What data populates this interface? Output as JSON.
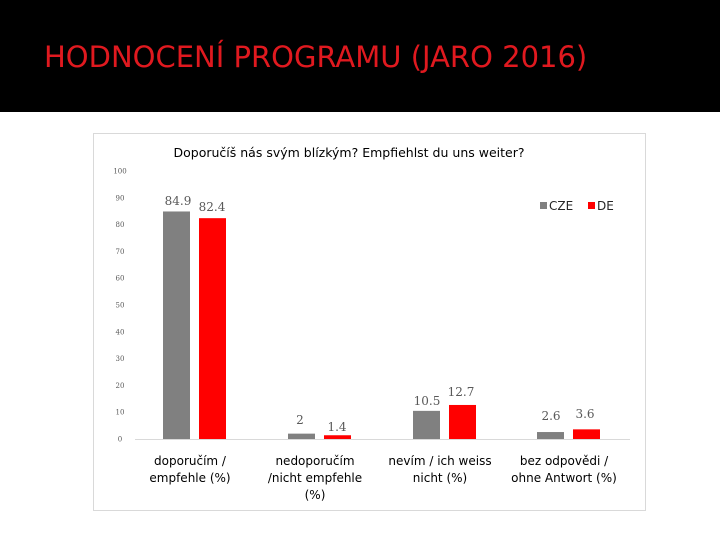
{
  "slide": {
    "title": "HODNOCENÍ PROGRAMU (JARO 2016)"
  },
  "chart_data": {
    "type": "bar",
    "title": "Doporučíš nás svým blízkým? Empfiehlst du uns weiter?",
    "categories": [
      [
        "doporučím /",
        "empfehle (%)"
      ],
      [
        "nedoporučím",
        "/nicht empfehle",
        "(%)"
      ],
      [
        "nevím / ich weiss",
        "nicht (%)"
      ],
      [
        "bez odpovědi /",
        "ohne Antwort (%)"
      ]
    ],
    "series": [
      {
        "name": "CZE",
        "color": "#808080",
        "values": [
          84.9,
          2,
          10.5,
          2.6
        ]
      },
      {
        "name": "DE",
        "color": "#ff0000",
        "values": [
          82.4,
          1.4,
          12.7,
          3.6
        ]
      }
    ],
    "value_labels": [
      [
        "84.9",
        "2",
        "10.5",
        "2.6"
      ],
      [
        "82.4",
        "1.4",
        "12.7",
        "3.6"
      ]
    ],
    "ylim": [
      0,
      100
    ],
    "yticks": [
      "0",
      "10",
      "20",
      "30",
      "40",
      "50",
      "60",
      "70",
      "80",
      "90",
      "100"
    ],
    "legend_position": "top-right",
    "grid": false
  }
}
